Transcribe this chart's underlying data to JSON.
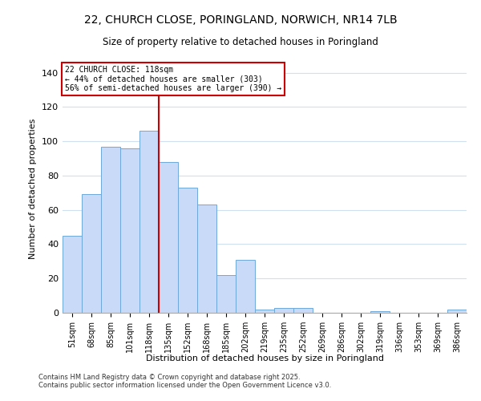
{
  "title": "22, CHURCH CLOSE, PORINGLAND, NORWICH, NR14 7LB",
  "subtitle": "Size of property relative to detached houses in Poringland",
  "xlabel": "Distribution of detached houses by size in Poringland",
  "ylabel": "Number of detached properties",
  "bar_labels": [
    "51sqm",
    "68sqm",
    "85sqm",
    "101sqm",
    "118sqm",
    "135sqm",
    "152sqm",
    "168sqm",
    "185sqm",
    "202sqm",
    "219sqm",
    "235sqm",
    "252sqm",
    "269sqm",
    "286sqm",
    "302sqm",
    "319sqm",
    "336sqm",
    "353sqm",
    "369sqm",
    "386sqm"
  ],
  "bar_values": [
    45,
    69,
    97,
    96,
    106,
    88,
    73,
    63,
    22,
    31,
    2,
    3,
    3,
    0,
    0,
    0,
    1,
    0,
    0,
    0,
    2
  ],
  "bar_color": "#c9daf8",
  "bar_edge_color": "#6fa8dc",
  "red_line_index": 4,
  "red_line_color": "#cc0000",
  "annotation_line1": "22 CHURCH CLOSE: 118sqm",
  "annotation_line2": "← 44% of detached houses are smaller (303)",
  "annotation_line3": "56% of semi-detached houses are larger (390) →",
  "ylim": [
    0,
    145
  ],
  "yticks": [
    0,
    20,
    40,
    60,
    80,
    100,
    120,
    140
  ],
  "footer1": "Contains HM Land Registry data © Crown copyright and database right 2025.",
  "footer2": "Contains public sector information licensed under the Open Government Licence v3.0.",
  "background_color": "#ffffff",
  "grid_color": "#d0e0f0"
}
